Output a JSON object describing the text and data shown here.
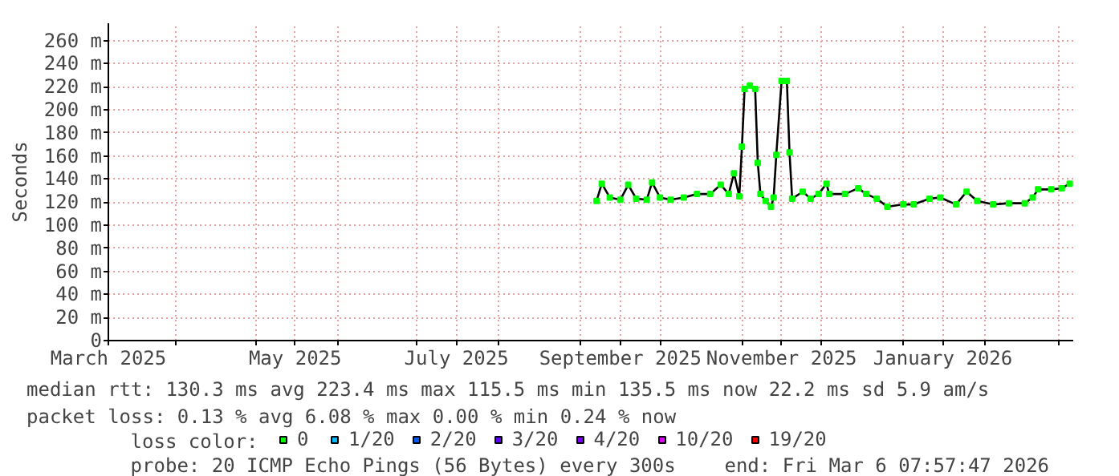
{
  "chart_data": {
    "type": "line",
    "ylabel": "Seconds",
    "x": [
      "2025-09-07",
      "2025-09-09",
      "2025-09-12",
      "2025-09-16",
      "2025-09-19",
      "2025-09-22",
      "2025-09-26",
      "2025-09-28",
      "2025-10-01",
      "2025-10-05",
      "2025-10-10",
      "2025-10-15",
      "2025-10-20",
      "2025-10-24",
      "2025-10-27",
      "2025-10-29",
      "2025-10-31",
      "2025-11-01",
      "2025-11-02",
      "2025-11-04",
      "2025-11-06",
      "2025-11-07",
      "2025-11-08",
      "2025-11-10",
      "2025-11-12",
      "2025-11-13",
      "2025-11-14",
      "2025-11-16",
      "2025-11-18",
      "2025-11-19",
      "2025-11-20",
      "2025-11-24",
      "2025-11-27",
      "2025-11-30",
      "2025-12-03",
      "2025-12-04",
      "2025-12-10",
      "2025-12-15",
      "2025-12-18",
      "2025-12-22",
      "2025-12-26",
      "2026-01-01",
      "2026-01-05",
      "2026-01-11",
      "2026-01-15",
      "2026-01-21",
      "2026-01-25",
      "2026-01-29",
      "2026-02-04",
      "2026-02-10",
      "2026-02-16",
      "2026-02-19",
      "2026-02-21",
      "2026-02-26",
      "2026-03-02",
      "2026-03-05"
    ],
    "xlim": [
      "2025-03-06T07:57",
      "2026-03-06T07:57"
    ],
    "xticks": [
      {
        "value": "2025-03-06T07:57",
        "label": "March 2025"
      },
      {
        "value": "2025-04-01",
        "label": null
      },
      {
        "value": "2025-05-01",
        "label": null
      },
      {
        "value": "2025-05-16",
        "label": "May 2025"
      },
      {
        "value": "2025-06-01",
        "label": null
      },
      {
        "value": "2025-07-01",
        "label": null
      },
      {
        "value": "2025-07-16",
        "label": "July 2025"
      },
      {
        "value": "2025-08-01",
        "label": null
      },
      {
        "value": "2025-09-01",
        "label": null
      },
      {
        "value": "2025-09-16",
        "label": "September 2025"
      },
      {
        "value": "2025-10-01",
        "label": null
      },
      {
        "value": "2025-11-01",
        "label": null
      },
      {
        "value": "2025-11-16",
        "label": "November 2025"
      },
      {
        "value": "2025-12-01",
        "label": null
      },
      {
        "value": "2026-01-01",
        "label": null
      },
      {
        "value": "2026-01-16",
        "label": "January 2026"
      },
      {
        "value": "2026-02-01",
        "label": null
      },
      {
        "value": "2026-03-01",
        "label": null
      }
    ],
    "ylim": [
      0,
      275
    ],
    "yticks": [
      0,
      {
        "value": 20,
        "label": "20 m"
      },
      {
        "value": 40,
        "label": "40 m"
      },
      {
        "value": 60,
        "label": "60 m"
      },
      {
        "value": 80,
        "label": "80 m"
      },
      {
        "value": 100,
        "label": "100 m"
      },
      {
        "value": 120,
        "label": "120 m"
      },
      {
        "value": 140,
        "label": "140 m"
      },
      {
        "value": 160,
        "label": "160 m"
      },
      {
        "value": 180,
        "label": "180 m"
      },
      {
        "value": 200,
        "label": "200 m"
      },
      {
        "value": 220,
        "label": "220 m"
      },
      {
        "value": 240,
        "label": "240 m"
      },
      {
        "value": 260,
        "label": "260 m"
      }
    ],
    "grid": true,
    "legend": "bottom",
    "legend_title": "loss color:",
    "series": [
      {
        "color": "#000000",
        "values": [
          121,
          136,
          124,
          122,
          135,
          123,
          122,
          137,
          124,
          122,
          124,
          127,
          127,
          135,
          127,
          145,
          125,
          168,
          218,
          221,
          218,
          154,
          127,
          121,
          116,
          124,
          161,
          225,
          225,
          163,
          123,
          129,
          123,
          127,
          136,
          127,
          127,
          132,
          127,
          123,
          116,
          118,
          118,
          123,
          124,
          118,
          129,
          121,
          118,
          119,
          119,
          124,
          131,
          131,
          132,
          136
        ]
      },
      {
        "type": "scatter",
        "marker": "square",
        "name": "0",
        "color": "#00ff00",
        "values": [
          121,
          136,
          124,
          122,
          135,
          123,
          122,
          137,
          124,
          122,
          124,
          127,
          127,
          135,
          127,
          145,
          125,
          168,
          218,
          221,
          218,
          154,
          127,
          121,
          116,
          124,
          161,
          225,
          225,
          163,
          123,
          129,
          123,
          127,
          136,
          127,
          127,
          132,
          127,
          123,
          116,
          118,
          118,
          123,
          124,
          118,
          129,
          121,
          118,
          119,
          119,
          124,
          131,
          131,
          132,
          136
        ]
      },
      {
        "type": "scatter",
        "name": "1/20",
        "color": "#00b8ff",
        "values": [
          null,
          null,
          null,
          null,
          null,
          null,
          null,
          null,
          null,
          null,
          null,
          null,
          null,
          null,
          null,
          null,
          null,
          null,
          null,
          null,
          null,
          null,
          null,
          null,
          null,
          null,
          null,
          null,
          null,
          null,
          null,
          null,
          null,
          null,
          null,
          null,
          null,
          null,
          null,
          null,
          null,
          null,
          null,
          null,
          null,
          null,
          null,
          null,
          null,
          null,
          null,
          null,
          null,
          null,
          null,
          null
        ]
      },
      {
        "type": "scatter",
        "name": "2/20",
        "color": "#0059ff",
        "values": [
          null,
          null,
          null,
          null,
          null,
          null,
          null,
          null,
          null,
          null,
          null,
          null,
          null,
          null,
          null,
          null,
          null,
          null,
          null,
          null,
          null,
          null,
          null,
          null,
          null,
          null,
          null,
          null,
          null,
          null,
          null,
          null,
          null,
          null,
          null,
          null,
          null,
          null,
          null,
          null,
          null,
          null,
          null,
          null,
          null,
          null,
          null,
          null,
          null,
          null,
          null,
          null,
          null,
          null,
          null,
          null
        ]
      },
      {
        "type": "scatter",
        "name": "3/20",
        "color": "#5e00ff",
        "values": [
          null,
          null,
          null,
          null,
          null,
          null,
          null,
          null,
          null,
          null,
          null,
          null,
          null,
          null,
          null,
          null,
          null,
          null,
          null,
          null,
          null,
          null,
          null,
          null,
          null,
          null,
          null,
          null,
          null,
          null,
          null,
          null,
          null,
          null,
          null,
          null,
          null,
          null,
          null,
          null,
          null,
          null,
          null,
          null,
          null,
          null,
          null,
          null,
          null,
          null,
          null,
          null,
          null,
          null,
          null,
          null
        ]
      },
      {
        "type": "scatter",
        "name": "4/20",
        "color": "#7e00ff",
        "values": [
          null,
          null,
          null,
          null,
          null,
          null,
          null,
          null,
          null,
          null,
          null,
          null,
          null,
          null,
          null,
          null,
          null,
          null,
          null,
          null,
          null,
          null,
          null,
          null,
          null,
          null,
          null,
          null,
          null,
          null,
          null,
          null,
          null,
          null,
          null,
          null,
          null,
          null,
          null,
          null,
          null,
          null,
          null,
          null,
          null,
          null,
          null,
          null,
          null,
          null,
          null,
          null,
          null,
          null,
          null,
          null
        ]
      },
      {
        "type": "scatter",
        "name": "10/20",
        "color": "#dd00ff",
        "values": [
          null,
          null,
          null,
          null,
          null,
          null,
          null,
          null,
          null,
          null,
          null,
          null,
          null,
          null,
          null,
          null,
          null,
          null,
          null,
          null,
          null,
          null,
          null,
          null,
          null,
          null,
          null,
          null,
          null,
          null,
          null,
          null,
          null,
          null,
          null,
          null,
          null,
          null,
          null,
          null,
          null,
          null,
          null,
          null,
          null,
          null,
          null,
          null,
          null,
          null,
          null,
          null,
          null,
          null,
          null,
          null
        ]
      },
      {
        "type": "scatter",
        "name": "19/20",
        "color": "#ff0000",
        "values": [
          null,
          null,
          null,
          null,
          null,
          null,
          null,
          null,
          null,
          null,
          null,
          null,
          null,
          null,
          null,
          null,
          null,
          null,
          null,
          null,
          null,
          null,
          null,
          null,
          null,
          null,
          null,
          null,
          null,
          null,
          null,
          null,
          null,
          null,
          null,
          null,
          null,
          null,
          null,
          null,
          null,
          null,
          null,
          null,
          null,
          null,
          null,
          null,
          null,
          null,
          null,
          null,
          null,
          null,
          null,
          null
        ]
      }
    ],
    "annotations": [
      "median rtt:  130.3 ms avg  223.4 ms max  115.5 ms min  135.5 ms now  22.2 ms sd  5.9   am/s",
      "packet loss: 0.13 % avg  6.08 % max  0.00 % min  0.24 % now",
      "probe:       20 ICMP Echo Pings (56 Bytes) every 300s",
      "end: Fri Mar  6 07:57:47 2026"
    ]
  }
}
